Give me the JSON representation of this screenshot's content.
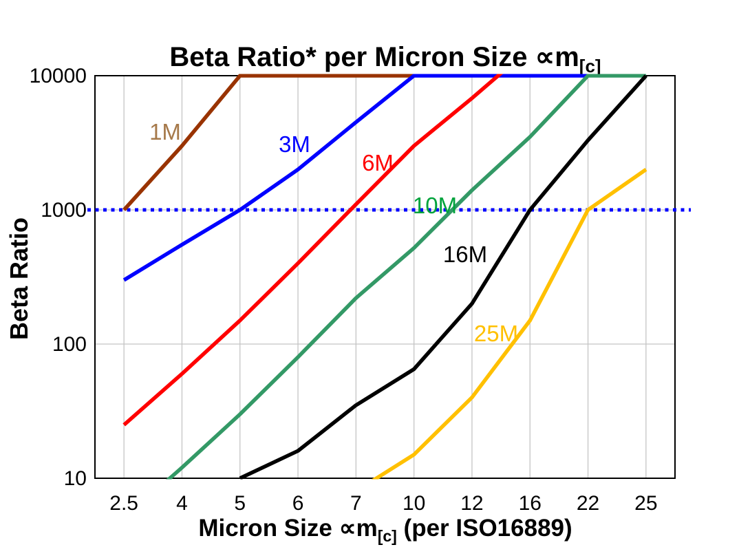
{
  "title": {
    "main": "Beta Ratio* per Micron Size ",
    "sym": "∝m",
    "sub": "[c]"
  },
  "y_axis": {
    "label": "Beta Ratio",
    "ticks": [
      "10000",
      "1000",
      "100",
      "10"
    ]
  },
  "x_axis": {
    "label_pre": "Micron Size ",
    "label_sym": "∝m",
    "label_sub": "[c]",
    "label_post": " (per ISO16889)",
    "ticks": [
      "2.5",
      "4",
      "5",
      "6",
      "7",
      "10",
      "12",
      "16",
      "22",
      "25"
    ]
  },
  "chart_data": {
    "type": "line",
    "title": "Beta Ratio* per Micron Size ∝m[c]",
    "xlabel": "Micron Size ∝m[c] (per ISO16889)",
    "ylabel": "Beta Ratio",
    "x_scale": "category",
    "y_scale": "log",
    "grid": true,
    "categories": [
      2.5,
      4,
      5,
      6,
      7,
      10,
      12,
      16,
      22,
      25
    ],
    "ylim": [
      10,
      10000
    ],
    "y_gridlines": [
      100,
      1000
    ],
    "reference_line": {
      "y": 1000,
      "color": "#0000FF",
      "style": "dotted"
    },
    "colors": {
      "grid": "#C4C4C4",
      "frame": "#000000",
      "background": "#FFFFFF"
    },
    "series": [
      {
        "name": "1M",
        "color": "#993300",
        "label_color": "#A6794A",
        "values": [
          1000,
          3000,
          10000,
          10000,
          10000,
          10000,
          null,
          null,
          null,
          null
        ]
      },
      {
        "name": "3M",
        "color": "#0000FF",
        "label_color": "#0000FF",
        "values": [
          300,
          550,
          1000,
          2000,
          4500,
          10000,
          10000,
          10000,
          10000,
          null
        ]
      },
      {
        "name": "6M",
        "color": "#FF0000",
        "label_color": "#FF0000",
        "values": [
          25,
          60,
          150,
          400,
          1100,
          3000,
          6800,
          16000,
          null,
          null
        ]
      },
      {
        "name": "10M",
        "color": "#339966",
        "label_color": "#00A33C",
        "values": [
          5,
          12,
          30,
          80,
          220,
          520,
          1400,
          3500,
          10000,
          10000
        ]
      },
      {
        "name": "16M",
        "color": "#000000",
        "label_color": "#000000",
        "values": [
          null,
          null,
          10,
          16,
          35,
          65,
          200,
          1000,
          3300,
          10000
        ]
      },
      {
        "name": "25M",
        "color": "#FFC000",
        "label_color": "#FFC000",
        "values": [
          null,
          null,
          null,
          null,
          8,
          15,
          40,
          150,
          1000,
          2000
        ]
      }
    ]
  }
}
